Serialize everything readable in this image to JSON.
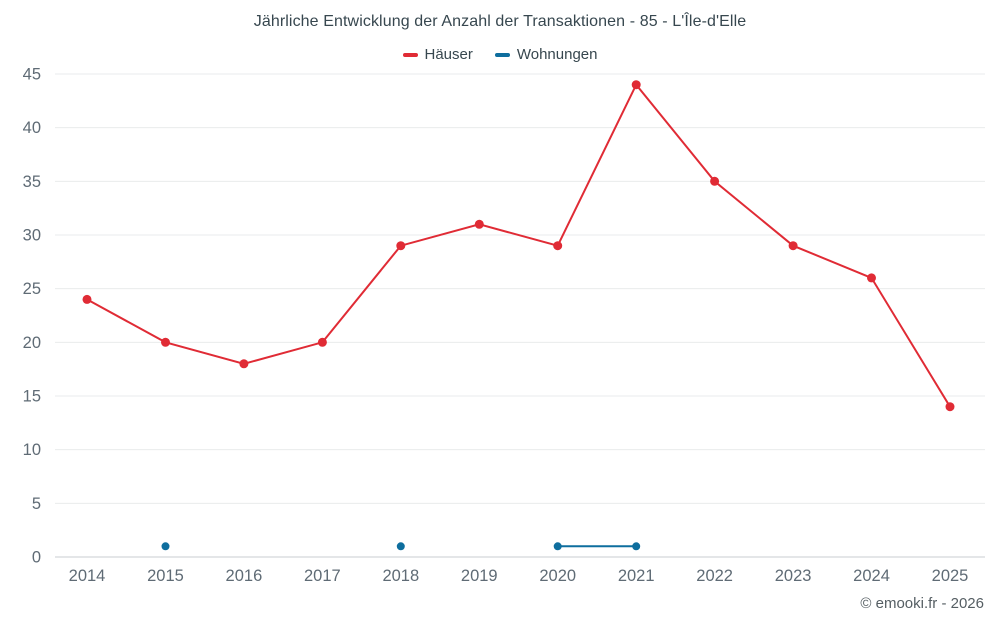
{
  "title": "Jährliche Entwicklung der Anzahl der Transaktionen - 85 - L'Île-d'Elle",
  "legend": [
    {
      "label": "Häuser",
      "color": "#e02b35"
    },
    {
      "label": "Wohnungen",
      "color": "#0e6e9e"
    }
  ],
  "copyright": "© emooki.fr - 2026",
  "colors": {
    "grid": "#e9ebec",
    "axis": "#c9ced2",
    "tick": "#5f6b75",
    "title_text": "#37474f"
  },
  "chart_data": {
    "type": "line",
    "title": "Jährliche Entwicklung der Anzahl der Transaktionen - 85 - L'Île-d'Elle",
    "x": [
      2014,
      2015,
      2016,
      2017,
      2018,
      2019,
      2020,
      2021,
      2022,
      2023,
      2024,
      2025
    ],
    "series": [
      {
        "name": "Häuser",
        "color": "#e02b35",
        "values": [
          24,
          20,
          18,
          20,
          29,
          31,
          29,
          44,
          35,
          29,
          26,
          14
        ]
      },
      {
        "name": "Wohnungen",
        "color": "#0e6e9e",
        "values": [
          null,
          1,
          null,
          null,
          1,
          null,
          1,
          1,
          null,
          null,
          null,
          null
        ]
      }
    ],
    "xlabel": "",
    "ylabel": "",
    "ylim": [
      0,
      45
    ],
    "ytick_step": 5,
    "grid": true,
    "legend_position": "top"
  }
}
